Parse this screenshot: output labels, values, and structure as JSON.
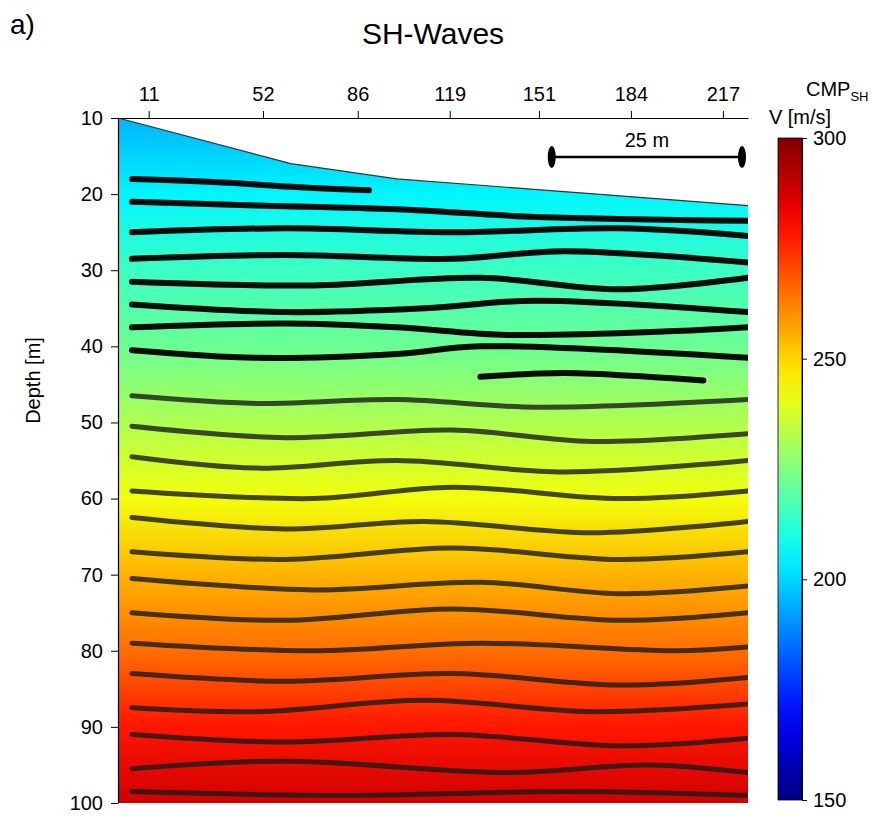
{
  "chart_data": {
    "type": "seismic_section",
    "panel_label": "a)",
    "title": "SH-Waves",
    "xlabel": "CMP",
    "xlabel_subscript": "SH",
    "ylabel": "Depth [m]",
    "xlim": [
      0,
      226
    ],
    "xticks": [
      11,
      52,
      86,
      119,
      151,
      184,
      217
    ],
    "ylim": [
      10,
      100
    ],
    "yticks": [
      10,
      20,
      30,
      40,
      50,
      60,
      70,
      80,
      90,
      100
    ],
    "velocity_profile": {
      "depth": [
        10,
        20,
        30,
        40,
        50,
        60,
        70,
        80,
        90,
        100
      ],
      "values": [
        195,
        205,
        215,
        222,
        232,
        242,
        255,
        265,
        278,
        288
      ]
    },
    "colorbar": {
      "label": "V [m/s]",
      "lim": [
        150,
        300
      ],
      "ticks": [
        150,
        200,
        250,
        300
      ]
    },
    "surface": {
      "cmp": [
        0,
        62,
        100,
        226
      ],
      "depth": [
        10,
        16,
        18,
        21.5
      ]
    },
    "scale_bar": {
      "length": 25,
      "label": "25 m"
    },
    "reflectors": [
      {
        "cmp": [
          5,
          40,
          60,
          90
        ],
        "depth": [
          18,
          18.5,
          19,
          19.5
        ]
      },
      {
        "cmp": [
          5,
          50,
          100,
          150,
          226
        ],
        "depth": [
          21,
          21.5,
          22,
          23,
          23.5
        ]
      },
      {
        "cmp": [
          5,
          60,
          120,
          180,
          226
        ],
        "depth": [
          25,
          24.5,
          25,
          24.5,
          25.5
        ]
      },
      {
        "cmp": [
          5,
          60,
          120,
          160,
          226
        ],
        "depth": [
          28.5,
          28,
          28.5,
          27.5,
          29
        ]
      },
      {
        "cmp": [
          5,
          70,
          130,
          180,
          226
        ],
        "depth": [
          31.5,
          32,
          31,
          32.5,
          31
        ]
      },
      {
        "cmp": [
          5,
          60,
          110,
          150,
          226
        ],
        "depth": [
          34.5,
          35.5,
          35,
          34,
          35.5
        ]
      },
      {
        "cmp": [
          5,
          60,
          100,
          140,
          200,
          226
        ],
        "depth": [
          37.5,
          37,
          37.5,
          38.5,
          38,
          37.5
        ]
      },
      {
        "cmp": [
          5,
          50,
          100,
          130,
          226
        ],
        "depth": [
          40.5,
          41.5,
          41,
          40,
          41.5
        ]
      },
      {
        "cmp": [
          130,
          160,
          190,
          210
        ],
        "depth": [
          44,
          43.5,
          44,
          44.5
        ]
      },
      {
        "cmp": [
          5,
          50,
          100,
          150,
          226
        ],
        "depth": [
          46.5,
          47.5,
          47,
          48,
          47
        ]
      },
      {
        "cmp": [
          5,
          60,
          120,
          170,
          226
        ],
        "depth": [
          50.5,
          52,
          51,
          52.5,
          51.5
        ]
      },
      {
        "cmp": [
          5,
          50,
          100,
          160,
          226
        ],
        "depth": [
          54.5,
          56,
          55,
          56.5,
          55
        ]
      },
      {
        "cmp": [
          5,
          70,
          120,
          180,
          226
        ],
        "depth": [
          59,
          60,
          58.5,
          60,
          59
        ]
      },
      {
        "cmp": [
          5,
          60,
          110,
          170,
          226
        ],
        "depth": [
          62.5,
          64,
          63,
          64.5,
          63
        ]
      },
      {
        "cmp": [
          5,
          60,
          120,
          180,
          226
        ],
        "depth": [
          67,
          68,
          66.5,
          68,
          67
        ]
      },
      {
        "cmp": [
          5,
          70,
          130,
          180,
          226
        ],
        "depth": [
          70.5,
          72,
          71,
          72.5,
          71.5
        ]
      },
      {
        "cmp": [
          5,
          60,
          120,
          180,
          226
        ],
        "depth": [
          75,
          76,
          74.5,
          76,
          75
        ]
      },
      {
        "cmp": [
          5,
          70,
          130,
          200,
          226
        ],
        "depth": [
          79,
          80,
          79,
          80,
          79.5
        ]
      },
      {
        "cmp": [
          5,
          60,
          120,
          180,
          226
        ],
        "depth": [
          83,
          84,
          83,
          84.5,
          83.5
        ]
      },
      {
        "cmp": [
          5,
          50,
          110,
          170,
          226
        ],
        "depth": [
          87.5,
          88,
          86.5,
          88,
          87
        ]
      },
      {
        "cmp": [
          5,
          60,
          120,
          180,
          226
        ],
        "depth": [
          91,
          92,
          91,
          92.5,
          91.5
        ]
      },
      {
        "cmp": [
          5,
          60,
          140,
          190,
          226
        ],
        "depth": [
          95.5,
          94.5,
          96,
          95,
          96
        ]
      },
      {
        "cmp": [
          5,
          80,
          160,
          226
        ],
        "depth": [
          98.5,
          99,
          98.5,
          99
        ]
      }
    ]
  }
}
